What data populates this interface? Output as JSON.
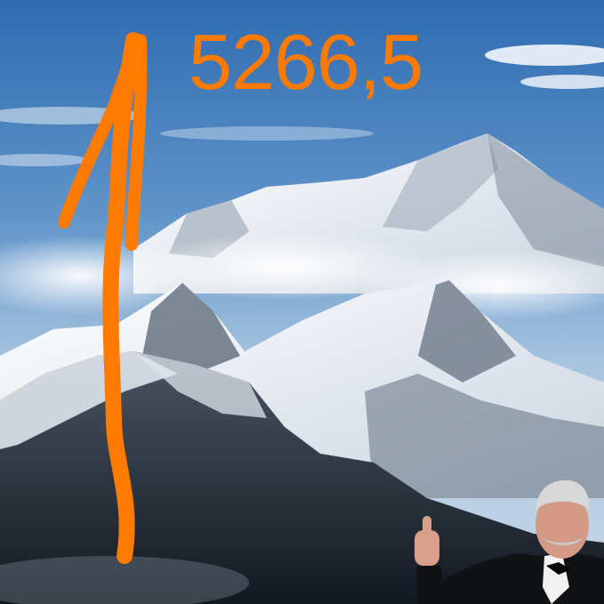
{
  "meme": {
    "value_text": "5266,5",
    "arrow_color": "#ff7a00",
    "text_color": "#ff7a00"
  },
  "scene": {
    "sky_top": "#2e6db3",
    "sky_bottom": "#a9c6e0",
    "snow": "#f4f7fb",
    "rock": "#3a4552"
  }
}
